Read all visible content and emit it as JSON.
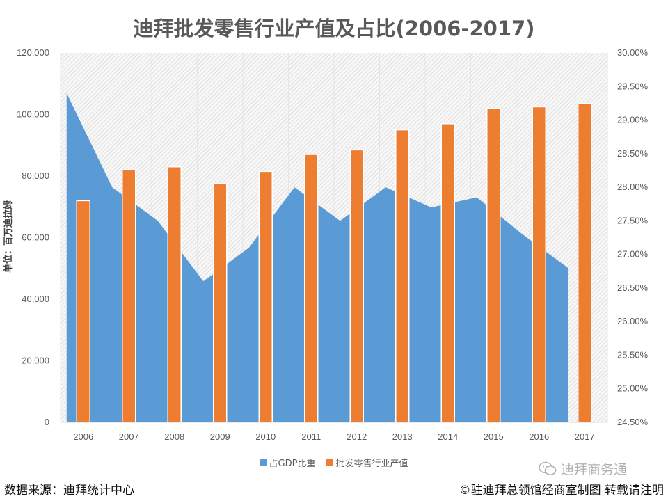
{
  "chart_data": {
    "type": "bar",
    "title": "迪拜批发零售行业产值及占比(2006-2017)",
    "categories": [
      "2006",
      "2007",
      "2008",
      "2009",
      "2010",
      "2011",
      "2012",
      "2013",
      "2014",
      "2015",
      "2016",
      "2017"
    ],
    "y_left": {
      "label": "单位：百万迪拉姆",
      "range": [
        0,
        120000
      ],
      "ticks": [
        "0",
        "20,000",
        "40,000",
        "60,000",
        "80,000",
        "100,000",
        "120,000"
      ]
    },
    "y_right": {
      "range": [
        24.5,
        30.0
      ],
      "ticks": [
        "24.50%",
        "25.00%",
        "25.50%",
        "26.00%",
        "26.50%",
        "27.00%",
        "27.50%",
        "28.00%",
        "28.50%",
        "29.00%",
        "29.50%",
        "30.00%"
      ]
    },
    "series": [
      {
        "name": "占GDP比重",
        "type": "area",
        "axis": "right",
        "color": "#5b9bd5",
        "values": [
          29.4,
          28.0,
          27.5,
          26.6,
          27.1,
          28.0,
          27.5,
          28.0,
          27.7,
          27.85,
          27.3,
          26.8
        ]
      },
      {
        "name": "批发零售行业产值",
        "type": "bar",
        "axis": "left",
        "color": "#ed7d31",
        "values": [
          72000,
          82000,
          83000,
          77500,
          81500,
          87000,
          88500,
          95000,
          97000,
          102000,
          102500,
          103500
        ]
      }
    ],
    "legend_position": "bottom"
  },
  "footer": {
    "source": "数据来源：迪拜统计中心",
    "copyright": "©驻迪拜总领馆经商室制图 转载请注明"
  },
  "watermark": {
    "text": "迪拜商务通",
    "icon": "wechat-icon"
  }
}
